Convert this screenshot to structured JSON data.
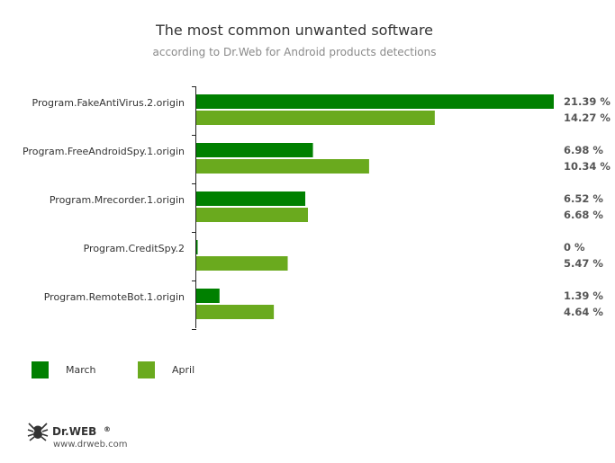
{
  "chart_data": {
    "type": "bar",
    "orientation": "horizontal",
    "title": "The most common unwanted software",
    "subtitle": "according to Dr.Web for Android products detections",
    "categories": [
      "Program.FakeAntiVirus.2.origin",
      "Program.FreeAndroidSpy.1.origin",
      "Program.Mrecorder.1.origin",
      "Program.CreditSpy.2",
      "Program.RemoteBot.1.origin"
    ],
    "series": [
      {
        "name": "March",
        "color": "#008000",
        "values": [
          21.39,
          6.98,
          6.52,
          0,
          1.39
        ],
        "labels": [
          "21.39 %",
          "6.98 %",
          "6.52 %",
          "0 %",
          "1.39 %"
        ]
      },
      {
        "name": "April",
        "color": "#6aaa1e",
        "values": [
          14.27,
          10.34,
          6.68,
          5.47,
          4.64
        ],
        "labels": [
          "14.27 %",
          "10.34 %",
          "6.68 %",
          "5.47 %",
          "4.64 %"
        ]
      }
    ],
    "xlim": [
      0,
      21.39
    ],
    "grid": false,
    "legend_position": "bottom-left"
  },
  "logo": {
    "brand": "Dr.WEB",
    "registered": "®",
    "url": "www.drweb.com",
    "icon": "spider-icon"
  }
}
